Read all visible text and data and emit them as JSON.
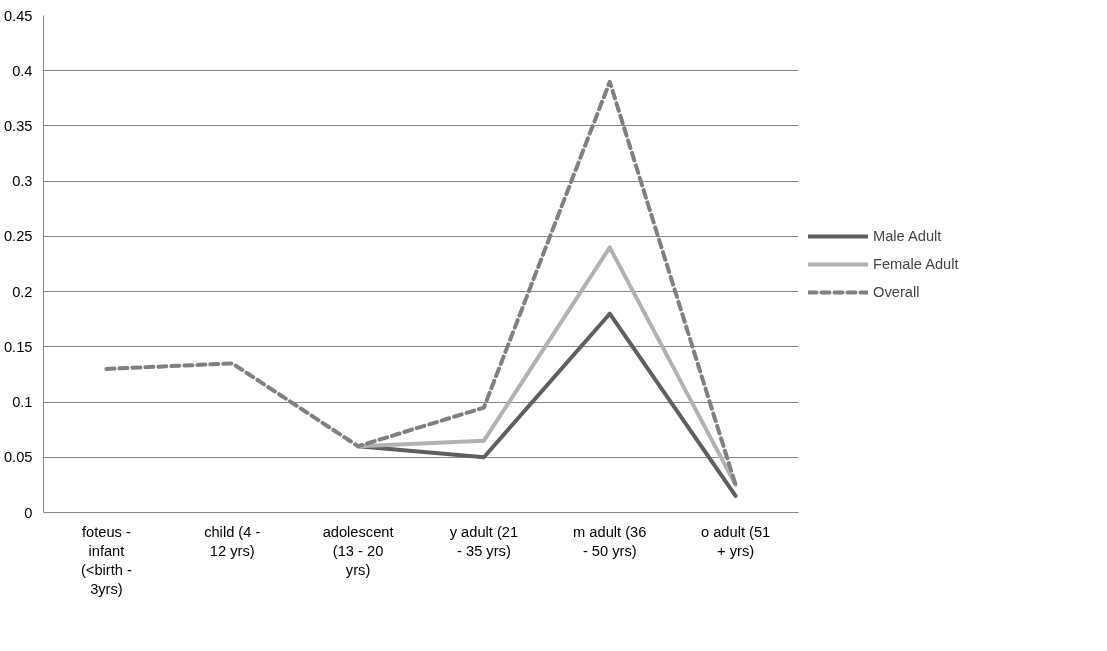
{
  "chart_data": {
    "type": "line",
    "categories": [
      "foteus - infant (<birth - 3yrs)",
      "child (4 - 12 yrs)",
      "adolescent (13 - 20 yrs)",
      "y adult (21 - 35 yrs)",
      "m adult (36 - 50 yrs)",
      "o adult (51 + yrs)"
    ],
    "series": [
      {
        "name": "Male Adult",
        "color": "#5f5f5f",
        "line_style": "solid",
        "values": [
          null,
          null,
          0.06,
          0.05,
          0.18,
          0.015
        ]
      },
      {
        "name": "Female Adult",
        "color": "#b2b2b2",
        "line_style": "solid",
        "values": [
          null,
          null,
          0.06,
          0.065,
          0.24,
          0.025
        ]
      },
      {
        "name": "Overall",
        "color": "#808080",
        "line_style": "dashed",
        "values": [
          0.13,
          0.135,
          0.06,
          0.095,
          0.39,
          0.025
        ]
      }
    ],
    "ylim": [
      0,
      0.45
    ],
    "yticks": [
      0,
      0.05,
      0.1,
      0.15,
      0.2,
      0.25,
      0.3,
      0.35,
      0.4,
      0.45
    ],
    "grid": "y",
    "legend": "right",
    "marker": "none"
  }
}
